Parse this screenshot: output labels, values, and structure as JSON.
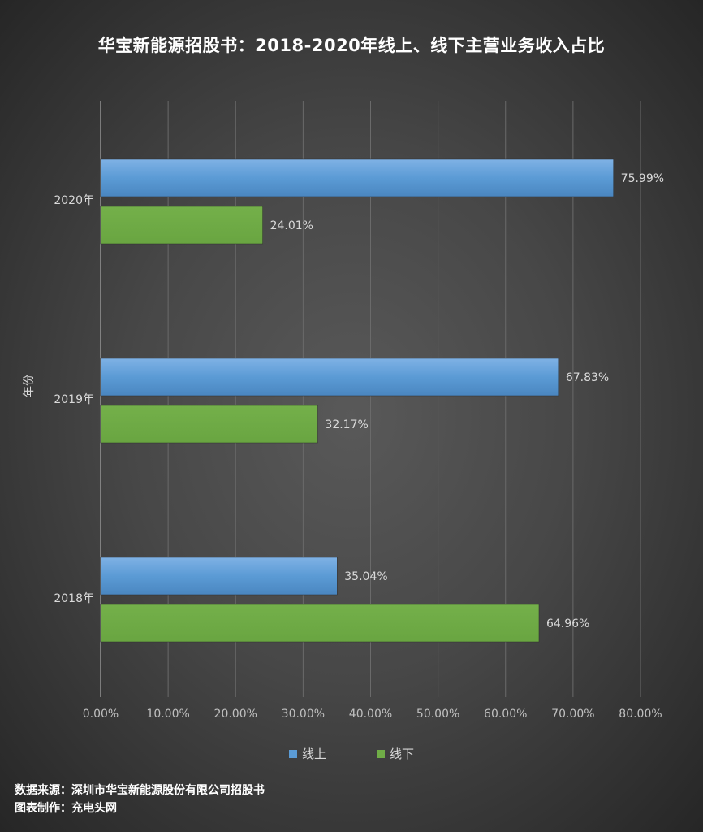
{
  "chart_data": {
    "type": "bar",
    "orientation": "horizontal",
    "title": "华宝新能源招股书：2018-2020年线上、线下主营业务收入占比",
    "ylabel": "年份",
    "xlabel": "",
    "categories": [
      "2020年",
      "2019年",
      "2018年"
    ],
    "series": [
      {
        "name": "线上",
        "values": [
          75.99,
          67.83,
          35.04
        ],
        "labels": [
          "75.99%",
          "67.83%",
          "35.04%"
        ],
        "color": "#5b9bd5"
      },
      {
        "name": "线下",
        "values": [
          24.01,
          32.17,
          64.96
        ],
        "labels": [
          "24.01%",
          "32.17%",
          "64.96%"
        ],
        "color": "#70ad47"
      }
    ],
    "xlim": [
      0,
      80
    ],
    "xticks": [
      0,
      10,
      20,
      30,
      40,
      50,
      60,
      70,
      80
    ],
    "xtick_labels": [
      "0.00%",
      "10.00%",
      "20.00%",
      "30.00%",
      "40.00%",
      "50.00%",
      "60.00%",
      "70.00%",
      "80.00%"
    ],
    "grid": true,
    "legend_position": "bottom"
  },
  "footer": {
    "source": "数据来源：深圳市华宝新能源股份有限公司招股书",
    "made_by": "图表制作：充电头网"
  }
}
